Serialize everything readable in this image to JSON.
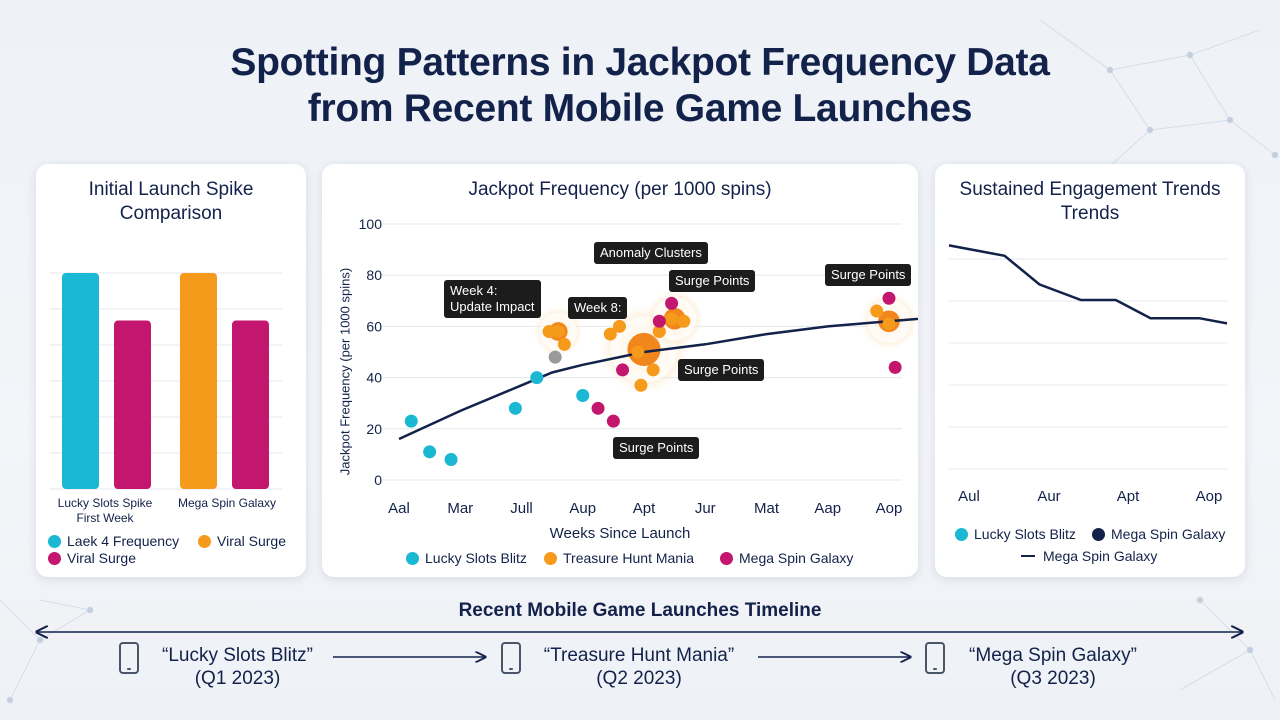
{
  "title_line1": "Spotting Patterns in Jackpot Frequency Data",
  "title_line2": "from Recent Mobile Game Launches",
  "colors": {
    "cyan": "#1ab8d2",
    "magenta": "#c3166e",
    "orange": "#f59a1b",
    "navy": "#13224a",
    "grey": "#9a9a9a"
  },
  "left_panel": {
    "title_line1": "Initial Launch Spike",
    "title_line2": "Comparison",
    "group_labels": [
      "Lucky Slots Spike\nFirst Week",
      "Mega Spin Galaxy"
    ],
    "legend": [
      "Laek 4 Frequency",
      "Viral Surge",
      "Viral Surge"
    ]
  },
  "mid_panel": {
    "title": "Jackpot Frequency (per 1000 spins)",
    "ylabel": "Jackpot Frequency (per 1000 spins)",
    "xlabel": "Weeks Since Launch",
    "legend": [
      "Lucky Slots Blitz",
      "Treasure Hunt Mania",
      "Mega Spin Galaxy"
    ],
    "callouts": {
      "week4_line1": "Week 4:",
      "week4_line2": "Update Impact",
      "week8": "Week 8:",
      "anomaly": "Anomaly Clusters",
      "surge_top_mid": "Surge Points",
      "surge_top_right": "Surge Points",
      "surge_mid": "Surge Points",
      "surge_bottom": "Surge Points"
    }
  },
  "right_panel": {
    "title_line1": "Sustained Engagement Trends",
    "title_line2": "Trends",
    "legend_1": "Lucky Slots Blitz",
    "legend_2": "Mega Spin Galaxy",
    "legend_3": "Mega Spin Galaxy"
  },
  "timeline": {
    "title": "Recent Mobile Game Launches Timeline",
    "items": [
      {
        "name": "“Lucky Slots Blitz”",
        "quarter": "(Q1 2023)"
      },
      {
        "name": "“Treasure Hunt Mania”",
        "quarter": "(Q2 2023)"
      },
      {
        "name": "“Mega Spin Galaxy”",
        "quarter": "(Q3 2023)"
      }
    ]
  },
  "chart_data": [
    {
      "type": "bar",
      "title": "Initial Launch Spike Comparison",
      "categories": [
        "Lucky Slots Spike First Week",
        "Mega Spin Galaxy"
      ],
      "series": [
        {
          "name": "Laek 4 Frequency",
          "color": "#1ab8d2",
          "values": [
            100,
            null
          ]
        },
        {
          "name": "Viral Surge",
          "color": "#c3166e",
          "values": [
            78,
            78
          ]
        },
        {
          "name": "Viral Surge",
          "color": "#f59a1b",
          "values": [
            null,
            100
          ]
        }
      ],
      "grid": true
    },
    {
      "type": "scatter",
      "title": "Jackpot Frequency (per 1000 spins)",
      "xlabel": "Weeks Since Launch",
      "ylabel": "Jackpot Frequency (per 1000 spins)",
      "ylim": [
        0,
        100
      ],
      "yticks": [
        0,
        20,
        40,
        60,
        80,
        100
      ],
      "xticks": [
        "Aal",
        "Mar",
        "Jull",
        "Aup",
        "Apt",
        "Jur",
        "Mat",
        "Aap",
        "Aop"
      ],
      "grid": true,
      "series": [
        {
          "name": "Lucky Slots Blitz",
          "color": "#1ab8d2",
          "points": [
            [
              0.2,
              23
            ],
            [
              0.5,
              11
            ],
            [
              0.85,
              8
            ],
            [
              1.9,
              28
            ],
            [
              2.25,
              40
            ],
            [
              3.0,
              33
            ]
          ]
        },
        {
          "name": "Treasure Hunt Mania",
          "color": "#f59a1b",
          "points": [
            [
              2.45,
              58
            ],
            [
              2.6,
              58
            ],
            [
              2.7,
              53
            ],
            [
              3.45,
              57
            ],
            [
              3.6,
              60
            ],
            [
              3.9,
              50
            ],
            [
              3.95,
              37
            ],
            [
              4.15,
              43
            ],
            [
              4.25,
              58
            ],
            [
              4.45,
              63
            ],
            [
              4.65,
              62
            ],
            [
              7.8,
              66
            ],
            [
              8.0,
              61
            ]
          ]
        },
        {
          "name": "Mega Spin Galaxy",
          "color": "#c3166e",
          "points": [
            [
              3.25,
              28
            ],
            [
              3.5,
              23
            ],
            [
              3.65,
              43
            ],
            [
              4.25,
              62
            ],
            [
              4.45,
              69
            ],
            [
              8.0,
              71
            ],
            [
              8.6,
              72
            ],
            [
              8.1,
              44
            ]
          ]
        },
        {
          "name": "",
          "color": "#9a9a9a",
          "points": [
            [
              2.55,
              48
            ]
          ]
        }
      ],
      "trend_line": {
        "color": "#13224a",
        "points": [
          [
            0,
            16
          ],
          [
            1,
            27
          ],
          [
            2,
            37
          ],
          [
            2.5,
            42
          ],
          [
            3,
            45
          ],
          [
            4,
            50
          ],
          [
            5,
            53
          ],
          [
            6,
            57
          ],
          [
            7,
            60
          ],
          [
            8,
            62
          ],
          [
            9,
            64
          ]
        ]
      },
      "highlights": [
        {
          "x": 2.6,
          "y": 58,
          "size": "small"
        },
        {
          "x": 4.0,
          "y": 51,
          "size": "large"
        },
        {
          "x": 4.5,
          "y": 63,
          "size": "medium"
        },
        {
          "x": 8.0,
          "y": 62,
          "size": "medium"
        }
      ]
    },
    {
      "type": "line",
      "title": "Sustained Engagement Trends",
      "xticks": [
        "Aul",
        "Aur",
        "Apt",
        "Aop"
      ],
      "grid": true,
      "series": [
        {
          "name": "Mega Spin Galaxy",
          "color": "#13224a",
          "points": [
            [
              0,
              86
            ],
            [
              0.8,
              82
            ],
            [
              1.3,
              71
            ],
            [
              1.9,
              65
            ],
            [
              2.4,
              65
            ],
            [
              2.9,
              58
            ],
            [
              3.3,
              58
            ],
            [
              3.6,
              58
            ],
            [
              4.0,
              56
            ]
          ]
        }
      ]
    }
  ]
}
